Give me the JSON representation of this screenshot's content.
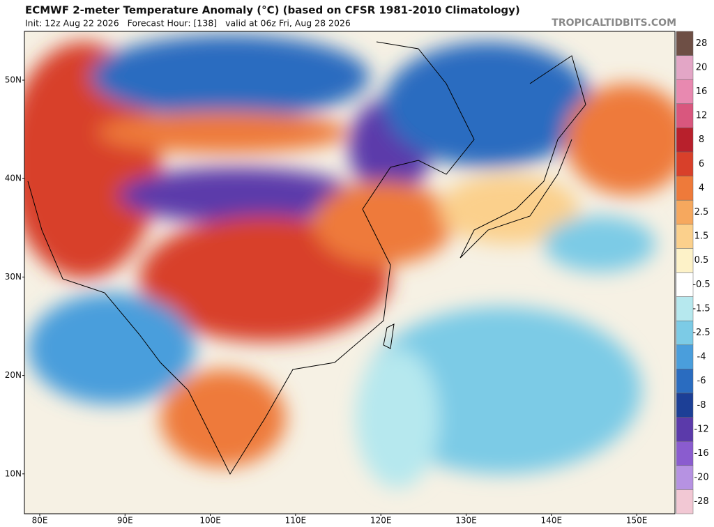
{
  "header": {
    "title": "ECMWF 2-meter Temperature Anomaly (°C) (based on CFSR 1981-2010 Climatology)",
    "subtitle": "Init: 12z Aug 22 2026   Forecast Hour: [138]   valid at 06z Fri, Aug 28 2026",
    "source": "TROPICALTIDBITS.COM"
  },
  "map": {
    "lat_labels": [
      "50N",
      "40N",
      "30N",
      "20N",
      "10N"
    ],
    "lon_labels": [
      "80E",
      "90E",
      "100E",
      "110E",
      "120E",
      "130E",
      "140E",
      "150E"
    ]
  },
  "colorbar": {
    "labels": [
      "28",
      "20",
      "16",
      "12",
      "8",
      "6",
      "4",
      "2.5",
      "1.5",
      "0.5",
      "-0.5",
      "-1.5",
      "-2.5",
      "-4",
      "-6",
      "-8",
      "-12",
      "-16",
      "-20",
      "-28"
    ],
    "colors": [
      "#6e4f45",
      "#e3a6c6",
      "#e889b0",
      "#d9577e",
      "#b8202c",
      "#d8402a",
      "#ee7a3a",
      "#f6a85e",
      "#fbd08c",
      "#fdf2c8",
      "#ffffff",
      "#b6e8ee",
      "#7ccbe6",
      "#4a9edc",
      "#2a6cc0",
      "#1c3f96",
      "#5b3aaa",
      "#8a5ccf",
      "#b692e2",
      "#f2c8d4"
    ]
  }
}
